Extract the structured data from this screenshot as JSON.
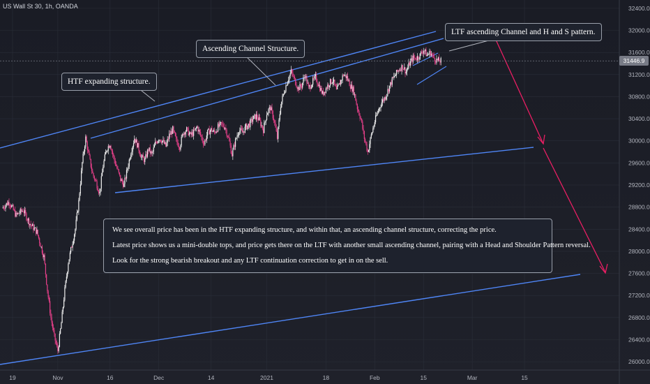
{
  "header": {
    "title": "US Wall St 30, 1h, OANDA"
  },
  "callouts": {
    "htf": "HTF expanding structure.",
    "channel": "Ascending Channel Structure.",
    "ltf": "LTF ascending Channel and H and S pattern."
  },
  "note": {
    "line1": "We see overall price has been in the HTF expanding structure, and within that, an ascending channel structure, correcting the price.",
    "line2": "Latest price shows us a mini-double tops, and price gets there on the LTF with another small ascending channel, pairing with a Head and Shoulder Pattern reversal.",
    "line3": "Look for the strong bearish breakout and any LTF continuation correction to get in on the sell."
  },
  "last_price": "31446.9",
  "colors": {
    "up": "#f0f0f0",
    "down": "#e8408a",
    "trendline": "#4f86f7",
    "arrow": "#e91e63",
    "grid": "#2a2e39"
  },
  "chart_data": {
    "type": "line",
    "title": "US Wall St 30, 1h, OANDA",
    "ylim": [
      25850,
      32550
    ],
    "yticks": [
      26000,
      26400,
      26800,
      27200,
      27600,
      28000,
      28400,
      28800,
      29200,
      29600,
      30000,
      30400,
      30800,
      31200,
      31600,
      32000,
      32400
    ],
    "ytick_labels": [
      "26000.0",
      "26400.0",
      "26800.0",
      "27200.0",
      "27600.0",
      "28000.0",
      "28400.0",
      "28800.0",
      "29200.0",
      "29600.0",
      "30000.0",
      "30400.0",
      "30800.0",
      "31200.0",
      "31600.0",
      "32000.0",
      "32400.0"
    ],
    "x_day_range": [
      0,
      158
    ],
    "xticks": [
      {
        "day": 3,
        "label": "19"
      },
      {
        "day": 16,
        "label": "Nov"
      },
      {
        "day": 31,
        "label": "16"
      },
      {
        "day": 45,
        "label": "Dec"
      },
      {
        "day": 60,
        "label": "14"
      },
      {
        "day": 76,
        "label": "2021"
      },
      {
        "day": 93,
        "label": "18"
      },
      {
        "day": 107,
        "label": "Feb"
      },
      {
        "day": 121,
        "label": "15"
      },
      {
        "day": 135,
        "label": "Mar"
      },
      {
        "day": 150,
        "label": "15"
      }
    ],
    "series": [
      {
        "points": [
          [
            0,
            28780
          ],
          [
            2,
            28900
          ],
          [
            4,
            28650
          ],
          [
            6,
            28750
          ],
          [
            8,
            28500
          ],
          [
            10,
            28350
          ],
          [
            12,
            27900
          ],
          [
            13,
            27300
          ],
          [
            14,
            26800
          ],
          [
            15,
            26450
          ],
          [
            16,
            26200
          ],
          [
            17,
            26700
          ],
          [
            18,
            27300
          ],
          [
            19,
            27800
          ],
          [
            20,
            28100
          ],
          [
            21,
            28400
          ],
          [
            22,
            28900
          ],
          [
            23,
            29600
          ],
          [
            24,
            30050
          ],
          [
            25,
            29700
          ],
          [
            26,
            29400
          ],
          [
            27,
            29250
          ],
          [
            28,
            29050
          ],
          [
            29,
            29550
          ],
          [
            30,
            29850
          ],
          [
            31,
            29950
          ],
          [
            32,
            29700
          ],
          [
            33,
            29500
          ],
          [
            34,
            29300
          ],
          [
            35,
            29200
          ],
          [
            36,
            29500
          ],
          [
            37,
            29800
          ],
          [
            38,
            30050
          ],
          [
            39,
            29900
          ],
          [
            40,
            29700
          ],
          [
            41,
            29650
          ],
          [
            42,
            29850
          ],
          [
            43,
            29750
          ],
          [
            44,
            29950
          ],
          [
            45,
            30050
          ],
          [
            46,
            30000
          ],
          [
            47,
            29900
          ],
          [
            48,
            30100
          ],
          [
            49,
            30200
          ],
          [
            50,
            30000
          ],
          [
            51,
            29900
          ],
          [
            52,
            30150
          ],
          [
            53,
            30200
          ],
          [
            54,
            30100
          ],
          [
            55,
            30150
          ],
          [
            56,
            30250
          ],
          [
            57,
            30100
          ],
          [
            58,
            29950
          ],
          [
            59,
            30150
          ],
          [
            60,
            30200
          ],
          [
            61,
            30150
          ],
          [
            62,
            30250
          ],
          [
            63,
            30300
          ],
          [
            64,
            30250
          ],
          [
            65,
            30050
          ],
          [
            66,
            29750
          ],
          [
            67,
            30000
          ],
          [
            68,
            30200
          ],
          [
            69,
            30150
          ],
          [
            70,
            30250
          ],
          [
            71,
            30300
          ],
          [
            72,
            30400
          ],
          [
            73,
            30450
          ],
          [
            74,
            30350
          ],
          [
            75,
            30200
          ],
          [
            76,
            30500
          ],
          [
            77,
            30600
          ],
          [
            78,
            30400
          ],
          [
            79,
            30050
          ],
          [
            80,
            30650
          ],
          [
            81,
            30900
          ],
          [
            82,
            31100
          ],
          [
            83,
            31250
          ],
          [
            84,
            31100
          ],
          [
            85,
            30950
          ],
          [
            86,
            31000
          ],
          [
            87,
            31200
          ],
          [
            88,
            30950
          ],
          [
            89,
            31050
          ],
          [
            90,
            31150
          ],
          [
            91,
            31000
          ],
          [
            92,
            30850
          ],
          [
            93,
            30950
          ],
          [
            94,
            31050
          ],
          [
            95,
            31100
          ],
          [
            96,
            30900
          ],
          [
            97,
            31050
          ],
          [
            98,
            31200
          ],
          [
            99,
            31150
          ],
          [
            100,
            31000
          ],
          [
            101,
            30900
          ],
          [
            102,
            30600
          ],
          [
            103,
            30400
          ],
          [
            104,
            30050
          ],
          [
            105,
            29800
          ],
          [
            106,
            30100
          ],
          [
            107,
            30350
          ],
          [
            108,
            30550
          ],
          [
            109,
            30700
          ],
          [
            110,
            30800
          ],
          [
            111,
            30950
          ],
          [
            112,
            31100
          ],
          [
            113,
            31200
          ],
          [
            114,
            31300
          ],
          [
            115,
            31350
          ],
          [
            116,
            31250
          ],
          [
            117,
            31400
          ],
          [
            118,
            31500
          ],
          [
            119,
            31500
          ],
          [
            120,
            31550
          ],
          [
            121,
            31650
          ],
          [
            122,
            31550
          ],
          [
            123,
            31600
          ],
          [
            124,
            31500
          ],
          [
            125,
            31450
          ],
          [
            126,
            31447
          ]
        ]
      }
    ]
  }
}
